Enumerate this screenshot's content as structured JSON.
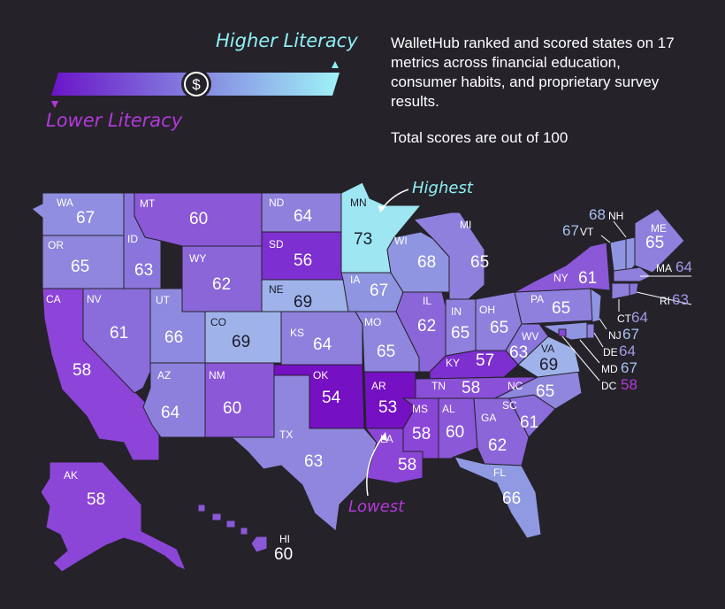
{
  "legend": {
    "high_label": "Higher Literacy",
    "low_label": "Lower Literacy",
    "dollar_symbol": "$",
    "gradient_start": "#6a14c8",
    "gradient_end": "#9ff3f8"
  },
  "description": "WalletHub ranked and scored states on 17 metrics across financial education, consumer habits, and proprietary survey results.",
  "note": "Total scores are out of 100",
  "callouts": {
    "highest": "Highest",
    "lowest": "Lowest"
  },
  "colors": {
    "background": "#25222a",
    "highest_callout": "#8ff0f4",
    "lowest_callout": "#b23ad9"
  },
  "states": {
    "WA": {
      "abbr": "WA",
      "score": "67"
    },
    "OR": {
      "abbr": "OR",
      "score": "65"
    },
    "CA": {
      "abbr": "CA",
      "score": "58"
    },
    "ID": {
      "abbr": "ID",
      "score": "63"
    },
    "NV": {
      "abbr": "NV",
      "score": "61"
    },
    "MT": {
      "abbr": "MT",
      "score": "60"
    },
    "WY": {
      "abbr": "WY",
      "score": "62"
    },
    "UT": {
      "abbr": "UT",
      "score": "66"
    },
    "AZ": {
      "abbr": "AZ",
      "score": "64"
    },
    "CO": {
      "abbr": "CO",
      "score": "69"
    },
    "NM": {
      "abbr": "NM",
      "score": "60"
    },
    "ND": {
      "abbr": "ND",
      "score": "64"
    },
    "SD": {
      "abbr": "SD",
      "score": "56"
    },
    "NE": {
      "abbr": "NE",
      "score": "69"
    },
    "KS": {
      "abbr": "KS",
      "score": "64"
    },
    "OK": {
      "abbr": "OK",
      "score": "54"
    },
    "TX": {
      "abbr": "TX",
      "score": "63"
    },
    "MN": {
      "abbr": "MN",
      "score": "73"
    },
    "IA": {
      "abbr": "IA",
      "score": "67"
    },
    "MO": {
      "abbr": "MO",
      "score": "65"
    },
    "AR": {
      "abbr": "AR",
      "score": "53"
    },
    "LA": {
      "abbr": "LA",
      "score": "58"
    },
    "WI": {
      "abbr": "WI",
      "score": "68"
    },
    "IL": {
      "abbr": "IL",
      "score": "62"
    },
    "MI": {
      "abbr": "MI",
      "score": "65"
    },
    "IN": {
      "abbr": "IN",
      "score": "65"
    },
    "OH": {
      "abbr": "OH",
      "score": "65"
    },
    "KY": {
      "abbr": "KY",
      "score": "57"
    },
    "TN": {
      "abbr": "TN",
      "score": "58"
    },
    "MS": {
      "abbr": "MS",
      "score": "58"
    },
    "AL": {
      "abbr": "AL",
      "score": "60"
    },
    "GA": {
      "abbr": "GA",
      "score": "62"
    },
    "FL": {
      "abbr": "FL",
      "score": "66"
    },
    "SC": {
      "abbr": "SC",
      "score": "61"
    },
    "NC": {
      "abbr": "NC",
      "score": "65"
    },
    "VA": {
      "abbr": "VA",
      "score": "69"
    },
    "WV": {
      "abbr": "WV",
      "score": "63"
    },
    "PA": {
      "abbr": "PA",
      "score": "65"
    },
    "NY": {
      "abbr": "NY",
      "score": "61"
    },
    "ME": {
      "abbr": "ME",
      "score": "65"
    },
    "AK": {
      "abbr": "AK",
      "score": "58"
    },
    "HI": {
      "abbr": "HI",
      "score": "60"
    },
    "NH": {
      "abbr": "NH",
      "score": "68"
    },
    "VT": {
      "abbr": "VT",
      "score": "67"
    },
    "MA": {
      "abbr": "MA",
      "score": "64"
    },
    "RI": {
      "abbr": "RI",
      "score": "63"
    },
    "CT": {
      "abbr": "CT",
      "score": "64"
    },
    "NJ": {
      "abbr": "NJ",
      "score": "67"
    },
    "DE": {
      "abbr": "DE",
      "score": "64"
    },
    "MD": {
      "abbr": "MD",
      "score": "67"
    },
    "DC": {
      "abbr": "DC",
      "score": "58"
    }
  }
}
